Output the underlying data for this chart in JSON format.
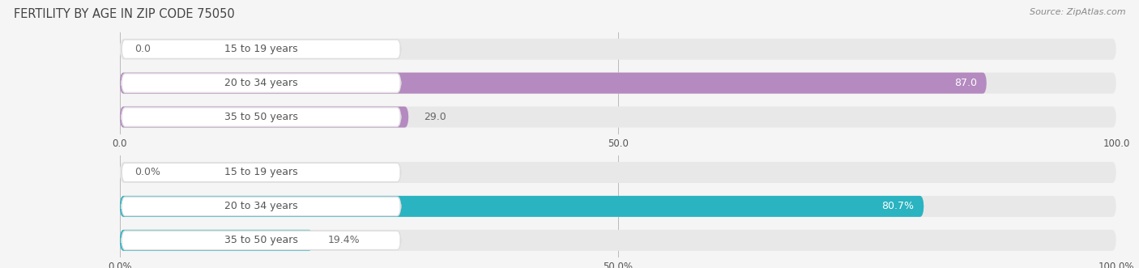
{
  "title": "FERTILITY BY AGE IN ZIP CODE 75050",
  "source": "Source: ZipAtlas.com",
  "top_chart": {
    "categories": [
      "15 to 19 years",
      "20 to 34 years",
      "35 to 50 years"
    ],
    "values": [
      0.0,
      87.0,
      29.0
    ],
    "max_val": 100,
    "xticks": [
      0.0,
      50.0,
      100.0
    ],
    "xtick_labels": [
      "0.0",
      "50.0",
      "100.0"
    ],
    "bar_color": "#b48ac0",
    "bar_bg_color": "#e8e8e8",
    "label_bg_color": "#f0eef5",
    "value_labels": [
      "0.0",
      "87.0",
      "29.0"
    ],
    "value_inside": [
      false,
      true,
      false
    ]
  },
  "bottom_chart": {
    "categories": [
      "15 to 19 years",
      "20 to 34 years",
      "35 to 50 years"
    ],
    "values": [
      0.0,
      80.7,
      19.4
    ],
    "max_val": 100,
    "xticks": [
      0.0,
      50.0,
      100.0
    ],
    "xtick_labels": [
      "0.0%",
      "50.0%",
      "100.0%"
    ],
    "bar_color": "#2ab3c0",
    "bar_bg_color": "#e8e8e8",
    "label_bg_color": "#e8f7f8",
    "value_labels": [
      "0.0%",
      "80.7%",
      "19.4%"
    ],
    "value_inside": [
      false,
      true,
      false
    ]
  },
  "background_color": "#f5f5f5",
  "chart_bg_color": "#f0f0f0",
  "white": "#ffffff",
  "title_fontsize": 10.5,
  "label_fontsize": 9,
  "tick_fontsize": 8.5,
  "source_fontsize": 8,
  "bar_height": 0.62,
  "title_color": "#444444",
  "text_color": "#555555",
  "value_color_dark": "#666666",
  "row_sep_color": "#ffffff"
}
